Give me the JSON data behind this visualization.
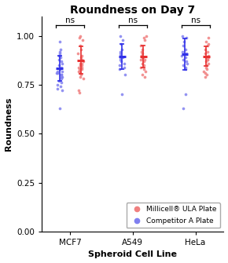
{
  "title": "Roundness on Day 7",
  "xlabel": "Spheroid Cell Line",
  "ylabel": "Roundness",
  "categories": [
    "MCF7",
    "A549",
    "HeLa"
  ],
  "ylim": [
    0.0,
    1.1
  ],
  "yticks": [
    0.0,
    0.25,
    0.5,
    0.75,
    1.0
  ],
  "mc_color": "#E83030",
  "cp_color": "#3030E8",
  "mc_color_light": "#F08080",
  "cp_color_light": "#8080F0",
  "millicell_stats": {
    "MCF7": {
      "mean": 0.875,
      "sd": 0.07,
      "points": [
        1.0,
        0.99,
        0.98,
        0.95,
        0.93,
        0.91,
        0.9,
        0.89,
        0.88,
        0.87,
        0.86,
        0.86,
        0.85,
        0.85,
        0.84,
        0.84,
        0.83,
        0.83,
        0.82,
        0.82,
        0.81,
        0.8,
        0.79,
        0.78,
        0.72,
        0.71
      ]
    },
    "A549": {
      "mean": 0.895,
      "sd": 0.055,
      "points": [
        1.0,
        0.99,
        0.98,
        0.95,
        0.93,
        0.92,
        0.91,
        0.9,
        0.89,
        0.89,
        0.88,
        0.88,
        0.87,
        0.86,
        0.85,
        0.84,
        0.83,
        0.82,
        0.8,
        0.79
      ]
    },
    "HeLa": {
      "mean": 0.895,
      "sd": 0.05,
      "points": [
        0.99,
        0.97,
        0.96,
        0.95,
        0.93,
        0.92,
        0.91,
        0.9,
        0.89,
        0.89,
        0.88,
        0.88,
        0.87,
        0.86,
        0.85,
        0.84,
        0.83,
        0.82,
        0.81,
        0.8,
        0.79
      ]
    }
  },
  "competitor_stats": {
    "MCF7": {
      "mean": 0.835,
      "sd": 0.065,
      "points": [
        0.97,
        0.93,
        0.92,
        0.91,
        0.9,
        0.89,
        0.88,
        0.87,
        0.86,
        0.85,
        0.84,
        0.83,
        0.83,
        0.82,
        0.82,
        0.81,
        0.81,
        0.8,
        0.8,
        0.79,
        0.79,
        0.78,
        0.77,
        0.76,
        0.75,
        0.74,
        0.73,
        0.72,
        0.63
      ]
    },
    "A549": {
      "mean": 0.895,
      "sd": 0.065,
      "points": [
        1.0,
        0.98,
        0.96,
        0.93,
        0.92,
        0.91,
        0.9,
        0.89,
        0.89,
        0.88,
        0.87,
        0.86,
        0.85,
        0.84,
        0.83,
        0.8,
        0.7
      ]
    },
    "HeLa": {
      "mean": 0.905,
      "sd": 0.08,
      "points": [
        1.0,
        0.99,
        0.97,
        0.95,
        0.93,
        0.92,
        0.91,
        0.9,
        0.89,
        0.88,
        0.87,
        0.86,
        0.85,
        0.84,
        0.83,
        0.7,
        0.63
      ]
    }
  },
  "background_color": "#FFFFFF",
  "title_fontsize": 10,
  "axis_fontsize": 8,
  "tick_fontsize": 7.5,
  "legend_fontsize": 6.5
}
